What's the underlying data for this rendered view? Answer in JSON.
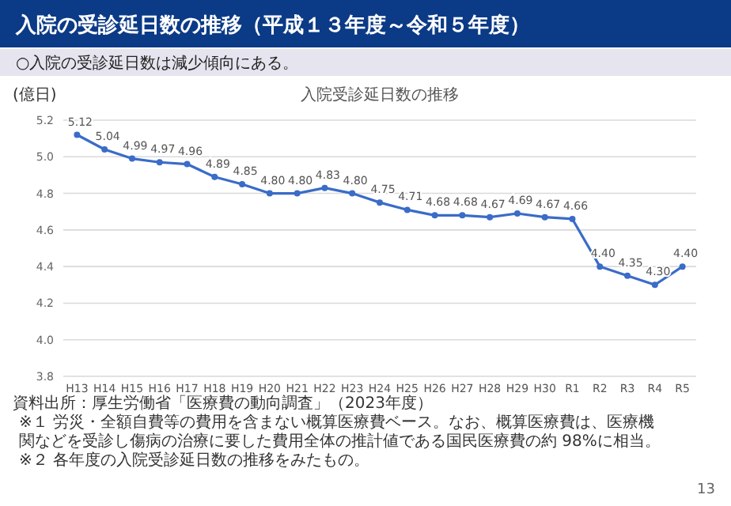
{
  "chart_data": {
    "type": "line",
    "title": "入院の受診延日数の推移（平成１３年度～令和５年度）",
    "subtitle": "○入院の受診延日数は減少傾向にある。",
    "ylabel": "(億日)",
    "categories": [
      "H13",
      "H14",
      "H15",
      "H16",
      "H17",
      "H18",
      "H19",
      "H20",
      "H21",
      "H22",
      "H23",
      "H24",
      "H25",
      "H26",
      "H27",
      "H28",
      "H29",
      "H30",
      "R1",
      "R2",
      "R3",
      "R4",
      "R5"
    ],
    "series": [
      {
        "color": "#3a6cc8",
        "values": [
          5.12,
          5.04,
          4.99,
          4.97,
          4.96,
          4.89,
          4.85,
          4.8,
          4.8,
          4.83,
          4.8,
          4.75,
          4.71,
          4.68,
          4.68,
          4.67,
          4.69,
          4.67,
          4.66,
          4.4,
          4.35,
          4.3,
          4.4
        ],
        "value_labels": [
          "5.12",
          "5.04",
          "4.99",
          "4.97",
          "4.96",
          "4.89",
          "4.85",
          "4.80",
          "4.80",
          "4.83",
          "4.80",
          "4.75",
          "4.71",
          "4.68",
          "4.68",
          "4.67",
          "4.69",
          "4.67",
          "4.66",
          "4.40",
          "4.35",
          "4.30",
          "4.40"
        ]
      }
    ],
    "ylim": [
      3.8,
      5.2
    ],
    "yticks": [
      {
        "value": 3.8,
        "label": "3.8"
      },
      {
        "value": 4.0,
        "label": "4.0"
      },
      {
        "value": 4.2,
        "label": "4.2"
      },
      {
        "value": 4.4,
        "label": "4.4"
      },
      {
        "value": 4.6,
        "label": "4.6"
      },
      {
        "value": 4.8,
        "label": "4.8"
      },
      {
        "value": 5.0,
        "label": "5.0"
      },
      {
        "value": 5.2,
        "label": "5.2"
      }
    ],
    "grid": "y",
    "marker": "circle",
    "line_style": "solid",
    "annotations": [
      "入院受診延日数の推移",
      "資料出所：厚生労働省「医療費の動向調査」（2023年度）",
      "※１ 労災・全額自費等の費用を含まない概算医療費ベース。なお、概算医療費は、医療機関などを受診し傷病の治療に要した費用全体の推計値である国民医療費の約 98%に相当。",
      "※２ 各年度の入院受診延日数の推移をみたもの。",
      "13"
    ]
  }
}
